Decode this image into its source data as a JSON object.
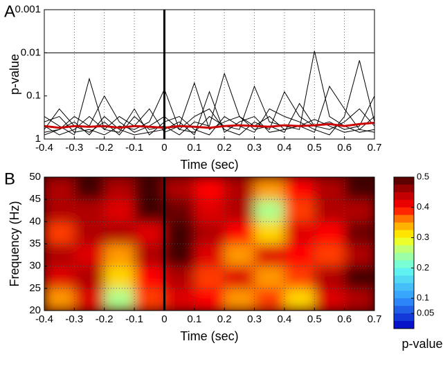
{
  "chart_data": [
    {
      "type": "line",
      "label": "A",
      "xlabel": "Time (sec)",
      "ylabel": "p-value",
      "log_y": true,
      "grid": "dotted",
      "hline": 0.01,
      "vline": 0,
      "xlim": [
        -0.4,
        0.7
      ],
      "xticks": [
        -0.4,
        -0.3,
        -0.2,
        -0.1,
        0,
        0.1,
        0.2,
        0.3,
        0.4,
        0.5,
        0.6,
        0.7
      ],
      "ylim": [
        1,
        0.001
      ],
      "yticks": [
        0.001,
        0.01,
        0.1,
        1
      ],
      "x": [
        -0.4,
        -0.35,
        -0.3,
        -0.25,
        -0.2,
        -0.15,
        -0.1,
        -0.05,
        0,
        0.05,
        0.1,
        0.15,
        0.2,
        0.25,
        0.3,
        0.35,
        0.4,
        0.45,
        0.5,
        0.55,
        0.6,
        0.65,
        0.7
      ],
      "series": [
        {
          "color": "#000000",
          "values": [
            0.3,
            0.5,
            0.8,
            0.04,
            0.6,
            0.3,
            0.5,
            0.2,
            0.7,
            0.5,
            0.05,
            0.6,
            0.4,
            0.3,
            0.5,
            0.3,
            0.6,
            0.5,
            0.35,
            0.5,
            0.7,
            0.6,
            0.3
          ]
        },
        {
          "color": "#000000",
          "values": [
            0.6,
            0.2,
            0.5,
            0.7,
            0.4,
            0.8,
            0.3,
            0.6,
            0.5,
            0.8,
            0.4,
            0.5,
            0.03,
            0.3,
            0.6,
            0.5,
            0.7,
            0.15,
            0.5,
            0.6,
            0.4,
            0.2,
            0.5
          ]
        },
        {
          "color": "#000000",
          "values": [
            0.8,
            0.6,
            0.3,
            0.5,
            0.1,
            0.4,
            0.7,
            0.5,
            0.3,
            0.6,
            0.7,
            0.3,
            0.5,
            0.6,
            0.06,
            0.4,
            0.5,
            0.6,
            0.009,
            0.3,
            0.5,
            0.7,
            0.6
          ]
        },
        {
          "color": "#000000",
          "values": [
            0.5,
            0.8,
            0.6,
            0.3,
            0.6,
            0.7,
            0.2,
            0.8,
            0.4,
            0.3,
            0.6,
            0.8,
            0.3,
            0.5,
            0.7,
            0.2,
            0.3,
            0.4,
            0.6,
            0.8,
            0.3,
            0.015,
            0.4
          ]
        },
        {
          "color": "#000000",
          "values": [
            0.4,
            0.3,
            0.7,
            0.6,
            0.8,
            0.5,
            0.6,
            0.4,
            0.07,
            0.6,
            0.3,
            0.2,
            0.6,
            0.8,
            0.4,
            0.6,
            0.08,
            0.3,
            0.5,
            0.4,
            0.6,
            0.5,
            0.1
          ]
        },
        {
          "color": "#000000",
          "values": [
            0.7,
            0.6,
            0.4,
            0.8,
            0.3,
            0.6,
            0.8,
            0.7,
            0.6,
            0.4,
            0.8,
            0.08,
            0.7,
            0.4,
            0.3,
            0.7,
            0.6,
            0.5,
            0.7,
            0.06,
            0.2,
            0.6,
            0.7
          ]
        },
        {
          "color": "#cc0000",
          "values": [
            0.5,
            0.55,
            0.5,
            0.52,
            0.5,
            0.55,
            0.5,
            0.52,
            0.55,
            0.5,
            0.52,
            0.55,
            0.5,
            0.48,
            0.5,
            0.52,
            0.48,
            0.5,
            0.48,
            0.45,
            0.5,
            0.45,
            0.42
          ]
        }
      ]
    },
    {
      "type": "heatmap",
      "label": "B",
      "xlabel": "Time (sec)",
      "ylabel": "Frequency (Hz)",
      "grid": "dotted",
      "vline": 0,
      "xlim": [
        -0.4,
        0.7
      ],
      "xticks": [
        -0.4,
        -0.3,
        -0.2,
        -0.1,
        0,
        0.1,
        0.2,
        0.3,
        0.4,
        0.5,
        0.6,
        0.7
      ],
      "ylim": [
        20,
        50
      ],
      "yticks": [
        20,
        25,
        30,
        35,
        40,
        45,
        50
      ],
      "xbins": [
        -0.4,
        -0.3,
        -0.2,
        -0.1,
        0,
        0.1,
        0.2,
        0.3,
        0.4,
        0.5,
        0.6,
        0.7
      ],
      "ybins": [
        20,
        25,
        30,
        35,
        40,
        45,
        50
      ],
      "values": [
        [
          0.35,
          0.42,
          0.25,
          0.38,
          0.42,
          0.4,
          0.35,
          0.38,
          0.32,
          0.42,
          0.45
        ],
        [
          0.42,
          0.45,
          0.32,
          0.4,
          0.45,
          0.38,
          0.42,
          0.35,
          0.38,
          0.45,
          0.5
        ],
        [
          0.45,
          0.42,
          0.35,
          0.45,
          0.5,
          0.42,
          0.35,
          0.42,
          0.4,
          0.38,
          0.45
        ],
        [
          0.38,
          0.45,
          0.45,
          0.42,
          0.5,
          0.45,
          0.4,
          0.32,
          0.42,
          0.4,
          0.48
        ],
        [
          0.45,
          0.45,
          0.42,
          0.5,
          0.48,
          0.42,
          0.45,
          0.25,
          0.38,
          0.45,
          0.45
        ],
        [
          0.45,
          0.5,
          0.45,
          0.5,
          0.45,
          0.4,
          0.45,
          0.35,
          0.4,
          0.45,
          0.5
        ]
      ],
      "clim": [
        0,
        0.5
      ],
      "colorbar_ticks": [
        0.05,
        0.1,
        0.2,
        0.3,
        0.4,
        0.5
      ],
      "colorbar_label": "p-value"
    }
  ]
}
